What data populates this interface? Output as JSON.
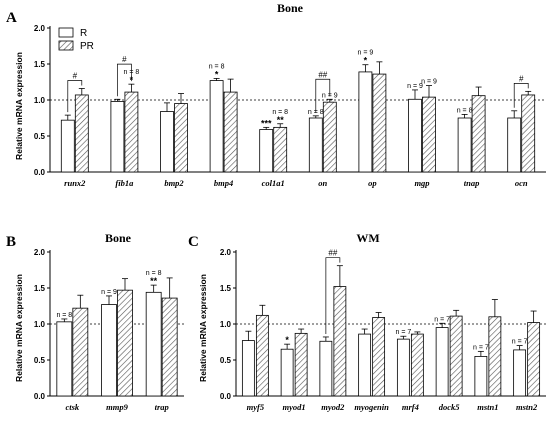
{
  "chart_data": [
    {
      "type": "bar",
      "panel": "A",
      "title": "Bone",
      "ylabel": "Relative mRNA expression",
      "ylim": [
        0,
        2.0
      ],
      "yticks": [
        "0.0",
        "0.5",
        "1.0",
        "1.5",
        "2.0"
      ],
      "reference_line": 1.0,
      "legend": [
        "R",
        "PR"
      ],
      "categories": [
        "runx2",
        "fib1a",
        "bmp2",
        "bmp4",
        "col1a1",
        "on",
        "op",
        "mgp",
        "tnap",
        "ocn"
      ],
      "series": [
        {
          "name": "R",
          "values": [
            0.72,
            0.98,
            0.84,
            1.27,
            0.59,
            0.75,
            1.39,
            1.01,
            0.75,
            0.75
          ],
          "errors": [
            0.07,
            0.03,
            0.12,
            0.03,
            0.03,
            0.03,
            0.1,
            0.13,
            0.05,
            0.1
          ]
        },
        {
          "name": "PR",
          "values": [
            1.07,
            1.11,
            0.95,
            1.11,
            0.62,
            0.97,
            1.36,
            1.04,
            1.06,
            1.07
          ],
          "errors": [
            0.09,
            0.11,
            0.14,
            0.18,
            0.05,
            0.04,
            0.17,
            0.16,
            0.12,
            0.05
          ]
        }
      ],
      "annotations": [
        {
          "category": "bmp4",
          "bar": "R",
          "text": "n = 8",
          "stars": "*"
        },
        {
          "category": "fib1a",
          "bar": "PR",
          "text": "n = 8",
          "stars": "*"
        },
        {
          "category": "col1a1",
          "bar": "R",
          "text": "",
          "stars": "***"
        },
        {
          "category": "col1a1",
          "bar": "PR",
          "text": "n = 8",
          "stars": "**"
        },
        {
          "category": "on",
          "bar": "R",
          "text": "n = 8",
          "stars": ""
        },
        {
          "category": "on",
          "bar": "PR",
          "text": "n = 9",
          "stars": ""
        },
        {
          "category": "op",
          "bar": "R",
          "text": "n = 9",
          "stars": "*"
        },
        {
          "category": "mgp",
          "bar": "R",
          "text": "n = 9",
          "stars": ""
        },
        {
          "category": "mgp",
          "bar": "PR",
          "text": "n = 9",
          "stars": ""
        },
        {
          "category": "tnap",
          "bar": "R",
          "text": "n = 8",
          "stars": ""
        }
      ],
      "brackets": [
        {
          "category": "runx2",
          "text": "#"
        },
        {
          "category": "fib1a",
          "text": "#"
        },
        {
          "category": "on",
          "text": "##"
        },
        {
          "category": "ocn",
          "text": "#"
        }
      ]
    },
    {
      "type": "bar",
      "panel": "B",
      "title": "Bone",
      "ylabel": "Relative mRNA expression",
      "ylim": [
        0,
        2.0
      ],
      "yticks": [
        "0.0",
        "0.5",
        "1.0",
        "1.5",
        "2.0"
      ],
      "reference_line": 1.0,
      "categories": [
        "ctsk",
        "mmp9",
        "trap"
      ],
      "series": [
        {
          "name": "R",
          "values": [
            1.03,
            1.27,
            1.44
          ],
          "errors": [
            0.04,
            0.12,
            0.1
          ]
        },
        {
          "name": "PR",
          "values": [
            1.22,
            1.47,
            1.36
          ],
          "errors": [
            0.18,
            0.16,
            0.28
          ]
        }
      ],
      "annotations": [
        {
          "category": "ctsk",
          "bar": "R",
          "text": "n = 8",
          "stars": ""
        },
        {
          "category": "mmp9",
          "bar": "R",
          "text": "n = 9",
          "stars": ""
        },
        {
          "category": "trap",
          "bar": "R",
          "text": "n = 8",
          "stars": "**"
        }
      ],
      "brackets": []
    },
    {
      "type": "bar",
      "panel": "C",
      "title": "WM",
      "ylabel": "Relative mRNA expression",
      "ylim": [
        0,
        2.0
      ],
      "yticks": [
        "0.0",
        "0.5",
        "1.0",
        "1.5",
        "2.0"
      ],
      "reference_line": 1.0,
      "categories": [
        "myf5",
        "myod1",
        "myod2",
        "myogenin",
        "mrf4",
        "dock5",
        "mstn1",
        "mstn2"
      ],
      "series": [
        {
          "name": "R",
          "values": [
            0.77,
            0.65,
            0.76,
            0.86,
            0.79,
            0.95,
            0.55,
            0.64
          ],
          "errors": [
            0.13,
            0.07,
            0.06,
            0.07,
            0.04,
            0.06,
            0.07,
            0.06
          ]
        },
        {
          "name": "PR",
          "values": [
            1.12,
            0.87,
            1.52,
            1.09,
            0.86,
            1.11,
            1.1,
            1.02
          ],
          "errors": [
            0.14,
            0.06,
            0.29,
            0.07,
            0.03,
            0.08,
            0.24,
            0.16
          ]
        }
      ],
      "annotations": [
        {
          "category": "myod1",
          "bar": "R",
          "text": "",
          "stars": "*"
        },
        {
          "category": "mrf4",
          "bar": "R",
          "text": "n = 7",
          "stars": ""
        },
        {
          "category": "dock5",
          "bar": "R",
          "text": "n = 7",
          "stars": ""
        },
        {
          "category": "mstn1",
          "bar": "R",
          "text": "n = 7",
          "stars": ""
        },
        {
          "category": "mstn2",
          "bar": "R",
          "text": "n = 7",
          "stars": ""
        }
      ],
      "brackets": [
        {
          "category": "myod2",
          "text": "##"
        }
      ]
    }
  ]
}
